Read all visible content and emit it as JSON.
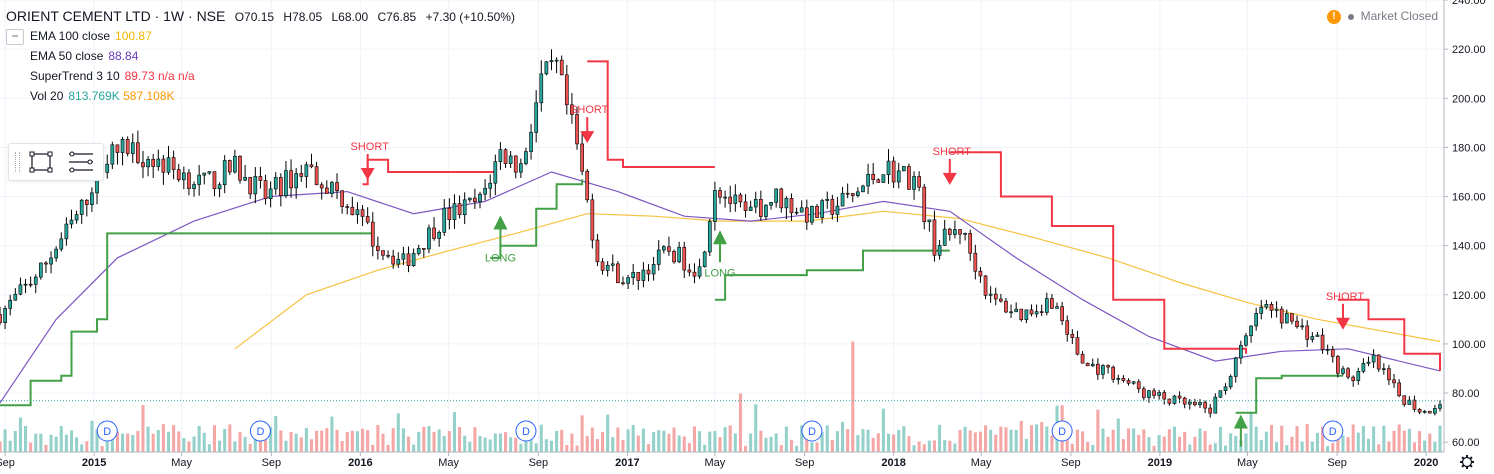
{
  "header": {
    "symbol": "ORIENT CEMENT LTD · 1W · NSE",
    "ohlc": {
      "open": "O70.15",
      "high": "H78.05",
      "low": "L68.00",
      "close": "C76.85",
      "change": "+7.30 (+10.50%)"
    },
    "market_status": "Market Closed",
    "warning_glyph": "!"
  },
  "indicators": [
    {
      "name": "EMA 100 close",
      "values": [
        "100.87"
      ],
      "colors": [
        "#f0b400"
      ]
    },
    {
      "name": "EMA 50 close",
      "values": [
        "88.84"
      ],
      "colors": [
        "#673ab7"
      ]
    },
    {
      "name": "SuperTrend 3 10",
      "values": [
        "89.73",
        "n/a",
        "n/a"
      ],
      "colors": [
        "#f23645",
        "#f23645",
        "#f23645"
      ]
    },
    {
      "name": "Vol 20",
      "values": [
        "813.769K",
        "587.108K"
      ],
      "colors": [
        "#26a69a",
        "#ff9800"
      ]
    }
  ],
  "collapse_glyph": "−",
  "colors": {
    "up": "#26a69a",
    "down": "#ef5350",
    "candle_border": "#000000",
    "ema100": "#f7c242",
    "ema50": "#7e57c2",
    "st_up": "#43a047",
    "st_down": "#f23645",
    "vol_up": "#94d1cb",
    "vol_down": "#f5a7a6",
    "price_label_bg": "#26a69a"
  },
  "chart_data": {
    "type": "candlestick",
    "title": "ORIENT CEMENT LTD · 1W · NSE",
    "interval": "1W",
    "y_axis": {
      "range": [
        56,
        240
      ],
      "ticks": [
        "240.00",
        "220.00",
        "200.00",
        "180.00",
        "160.00",
        "140.00",
        "120.00",
        "100.00",
        "80.00",
        "60.00"
      ]
    },
    "x_axis": {
      "range": [
        "2014-08-25",
        "2020-01-20"
      ],
      "ticks": [
        "Sep",
        "2015",
        "May",
        "Sep",
        "2016",
        "May",
        "Sep",
        "2017",
        "May",
        "Sep",
        "2018",
        "May",
        "Sep",
        "2019",
        "May",
        "Sep",
        "2020"
      ],
      "tick_dates": [
        "2014-09-01",
        "2015-01-01",
        "2015-05-01",
        "2015-09-01",
        "2016-01-01",
        "2016-05-01",
        "2016-09-01",
        "2017-01-01",
        "2017-05-01",
        "2017-09-01",
        "2018-01-01",
        "2018-05-01",
        "2018-09-01",
        "2019-01-01",
        "2019-05-01",
        "2019-09-01",
        "2020-01-01"
      ]
    },
    "last_price": {
      "value": 76.85,
      "label": "76.85"
    },
    "price_path": [
      [
        "2014-08-25",
        112
      ],
      [
        "2014-10-20",
        130
      ],
      [
        "2014-12-15",
        155
      ],
      [
        "2015-01-12",
        175
      ],
      [
        "2015-02-16",
        180
      ],
      [
        "2015-04-13",
        172
      ],
      [
        "2015-06-01",
        165
      ],
      [
        "2015-07-13",
        172
      ],
      [
        "2015-08-24",
        160
      ],
      [
        "2015-10-19",
        172
      ],
      [
        "2015-12-14",
        158
      ],
      [
        "2016-01-25",
        140
      ],
      [
        "2016-02-29",
        133
      ],
      [
        "2016-04-25",
        152
      ],
      [
        "2016-06-13",
        158
      ],
      [
        "2016-07-11",
        178
      ],
      [
        "2016-08-08",
        172
      ],
      [
        "2016-09-05",
        207
      ],
      [
        "2016-09-26",
        212
      ],
      [
        "2016-10-24",
        180
      ],
      [
        "2016-11-21",
        135
      ],
      [
        "2017-01-02",
        125
      ],
      [
        "2017-02-27",
        138
      ],
      [
        "2017-04-10",
        130
      ],
      [
        "2017-05-01",
        165
      ],
      [
        "2017-06-12",
        152
      ],
      [
        "2017-07-24",
        160
      ],
      [
        "2017-09-11",
        152
      ],
      [
        "2017-11-06",
        160
      ],
      [
        "2017-12-18",
        172
      ],
      [
        "2018-01-29",
        167
      ],
      [
        "2018-02-26",
        140
      ],
      [
        "2018-04-02",
        147
      ],
      [
        "2018-05-14",
        118
      ],
      [
        "2018-06-25",
        112
      ],
      [
        "2018-08-06",
        118
      ],
      [
        "2018-09-17",
        92
      ],
      [
        "2018-10-29",
        88
      ],
      [
        "2018-12-10",
        80
      ],
      [
        "2019-01-28",
        76
      ],
      [
        "2019-03-11",
        73
      ],
      [
        "2019-04-08",
        88
      ],
      [
        "2019-05-20",
        115
      ],
      [
        "2019-06-24",
        110
      ],
      [
        "2019-08-05",
        102
      ],
      [
        "2019-09-16",
        85
      ],
      [
        "2019-10-21",
        93
      ],
      [
        "2019-11-25",
        79
      ],
      [
        "2019-12-30",
        72
      ],
      [
        "2020-01-20",
        76.85
      ]
    ],
    "ema100_path": [
      [
        "2015-07-13",
        98
      ],
      [
        "2015-10-19",
        120
      ],
      [
        "2016-01-25",
        130
      ],
      [
        "2016-05-02",
        138
      ],
      [
        "2016-08-01",
        145
      ],
      [
        "2016-11-07",
        153
      ],
      [
        "2017-02-06",
        152
      ],
      [
        "2017-05-08",
        150
      ],
      [
        "2017-09-04",
        150
      ],
      [
        "2017-12-18",
        154
      ],
      [
        "2018-04-02",
        151
      ],
      [
        "2018-07-16",
        143
      ],
      [
        "2018-10-22",
        135
      ],
      [
        "2019-01-28",
        125
      ],
      [
        "2019-04-29",
        117
      ],
      [
        "2019-08-05",
        110
      ],
      [
        "2020-01-20",
        101
      ]
    ],
    "ema50_path": [
      [
        "2014-08-25",
        76
      ],
      [
        "2014-11-10",
        110
      ],
      [
        "2015-02-02",
        135
      ],
      [
        "2015-05-18",
        150
      ],
      [
        "2015-08-31",
        160
      ],
      [
        "2015-12-14",
        162
      ],
      [
        "2016-03-14",
        153
      ],
      [
        "2016-06-20",
        158
      ],
      [
        "2016-09-19",
        170
      ],
      [
        "2016-12-19",
        162
      ],
      [
        "2017-03-20",
        152
      ],
      [
        "2017-06-19",
        150
      ],
      [
        "2017-09-18",
        153
      ],
      [
        "2017-12-18",
        158
      ],
      [
        "2018-03-19",
        154
      ],
      [
        "2018-06-18",
        135
      ],
      [
        "2018-09-17",
        118
      ],
      [
        "2018-12-17",
        103
      ],
      [
        "2019-03-18",
        93
      ],
      [
        "2019-06-17",
        97
      ],
      [
        "2019-09-16",
        98
      ],
      [
        "2020-01-20",
        89
      ]
    ],
    "supertrend_segments": [
      {
        "trend": "up",
        "points": [
          [
            "2014-08-25",
            75
          ],
          [
            "2014-10-06",
            85
          ],
          [
            "2014-11-17",
            87
          ],
          [
            "2014-12-01",
            105
          ],
          [
            "2015-01-05",
            110
          ],
          [
            "2015-01-19",
            145
          ],
          [
            "2016-01-18",
            145
          ]
        ]
      },
      {
        "trend": "down",
        "points": [
          [
            "2016-01-04",
            165
          ],
          [
            "2016-01-11",
            175
          ],
          [
            "2016-02-08",
            170
          ],
          [
            "2016-07-04",
            170
          ]
        ]
      },
      {
        "trend": "up",
        "points": [
          [
            "2016-06-27",
            135
          ],
          [
            "2016-07-11",
            140
          ],
          [
            "2016-08-08",
            140
          ],
          [
            "2016-08-29",
            155
          ],
          [
            "2016-09-26",
            165
          ],
          [
            "2016-10-31",
            167
          ]
        ]
      },
      {
        "trend": "down",
        "points": [
          [
            "2016-11-07",
            215
          ],
          [
            "2016-12-05",
            175
          ],
          [
            "2016-12-26",
            172
          ],
          [
            "2017-05-01",
            172
          ]
        ]
      },
      {
        "trend": "up",
        "points": [
          [
            "2017-05-01",
            118
          ],
          [
            "2017-05-15",
            128
          ],
          [
            "2017-07-03",
            128
          ],
          [
            "2017-09-04",
            130
          ],
          [
            "2017-11-20",
            138
          ],
          [
            "2018-03-19",
            138
          ]
        ]
      },
      {
        "trend": "down",
        "points": [
          [
            "2018-03-19",
            178
          ],
          [
            "2018-04-30",
            178
          ],
          [
            "2018-05-28",
            160
          ],
          [
            "2018-08-06",
            148
          ],
          [
            "2018-10-29",
            118
          ],
          [
            "2019-01-07",
            98
          ],
          [
            "2019-04-29",
            96
          ]
        ]
      },
      {
        "trend": "up",
        "points": [
          [
            "2019-04-15",
            72
          ],
          [
            "2019-05-13",
            86
          ],
          [
            "2019-06-17",
            87
          ],
          [
            "2019-09-09",
            87
          ]
        ]
      },
      {
        "trend": "down",
        "points": [
          [
            "2019-09-02",
            118
          ],
          [
            "2019-10-14",
            110
          ],
          [
            "2019-12-02",
            96
          ],
          [
            "2020-01-20",
            89
          ]
        ]
      }
    ],
    "signals": [
      {
        "label": "SHORT",
        "date": "2016-01-11",
        "price": 170,
        "type": "short"
      },
      {
        "label": "LONG",
        "date": "2016-07-11",
        "price": 149,
        "type": "long"
      },
      {
        "label": "SHORT",
        "date": "2016-11-07",
        "price": 185,
        "type": "short"
      },
      {
        "label": "LONG",
        "date": "2017-05-08",
        "price": 143,
        "type": "long"
      },
      {
        "label": "SHORT",
        "date": "2018-03-19",
        "price": 168,
        "type": "short"
      },
      {
        "label": "LONG",
        "date": "2019-04-22",
        "price": 68,
        "type": "long"
      },
      {
        "label": "SHORT",
        "date": "2019-09-09",
        "price": 109,
        "type": "short"
      }
    ],
    "dividends": {
      "label": "D",
      "dates": [
        "2015-01-19",
        "2015-08-17",
        "2016-08-15",
        "2017-09-11",
        "2018-08-20",
        "2019-08-26"
      ]
    },
    "volume_spikes": [
      [
        "2017-11-06",
        0.85
      ],
      [
        "2018-08-20",
        0.36
      ],
      [
        "2017-06-05",
        0.45
      ],
      [
        "2019-05-06",
        0.3
      ]
    ]
  }
}
